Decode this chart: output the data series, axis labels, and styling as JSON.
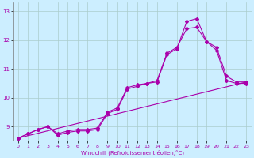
{
  "xlabel": "Windchill (Refroidissement éolien,°C)",
  "bg_color": "#cceeff",
  "line_color": "#aa00aa",
  "grid_color": "#aacccc",
  "xlim": [
    -0.5,
    23.5
  ],
  "ylim": [
    8.5,
    13.3
  ],
  "yticks": [
    9,
    10,
    11,
    12,
    13
  ],
  "xticks": [
    0,
    1,
    2,
    3,
    4,
    5,
    6,
    7,
    8,
    9,
    10,
    11,
    12,
    13,
    14,
    15,
    16,
    17,
    18,
    19,
    20,
    21,
    22,
    23
  ],
  "line1_x": [
    0,
    1,
    2,
    3,
    4,
    5,
    6,
    7,
    8,
    9,
    10,
    11,
    12,
    13,
    14,
    15,
    16,
    17,
    18,
    19,
    20,
    21,
    22,
    23
  ],
  "line1_y": [
    8.6,
    8.75,
    8.9,
    9.0,
    8.75,
    8.85,
    8.9,
    8.9,
    8.95,
    9.5,
    9.65,
    10.35,
    10.45,
    10.5,
    10.6,
    11.55,
    11.75,
    12.4,
    12.45,
    11.95,
    11.75,
    10.75,
    10.55,
    10.55
  ],
  "line2_x": [
    0,
    1,
    2,
    3,
    4,
    5,
    6,
    7,
    8,
    9,
    10,
    11,
    12,
    13,
    14,
    15,
    16,
    17,
    18,
    19,
    20,
    21,
    22,
    23
  ],
  "line2_y": [
    8.6,
    8.75,
    8.9,
    9.0,
    8.7,
    8.8,
    8.85,
    8.85,
    8.9,
    9.45,
    9.6,
    10.3,
    10.4,
    10.5,
    10.55,
    11.5,
    11.7,
    12.65,
    12.75,
    11.95,
    11.65,
    10.6,
    10.5,
    10.5
  ],
  "line3_x": [
    0,
    23
  ],
  "line3_y": [
    8.6,
    10.55
  ],
  "marker": "D",
  "markersize": 2.0,
  "linewidth": 0.8,
  "tick_fontsize": 4.5,
  "xlabel_fontsize": 5.0
}
